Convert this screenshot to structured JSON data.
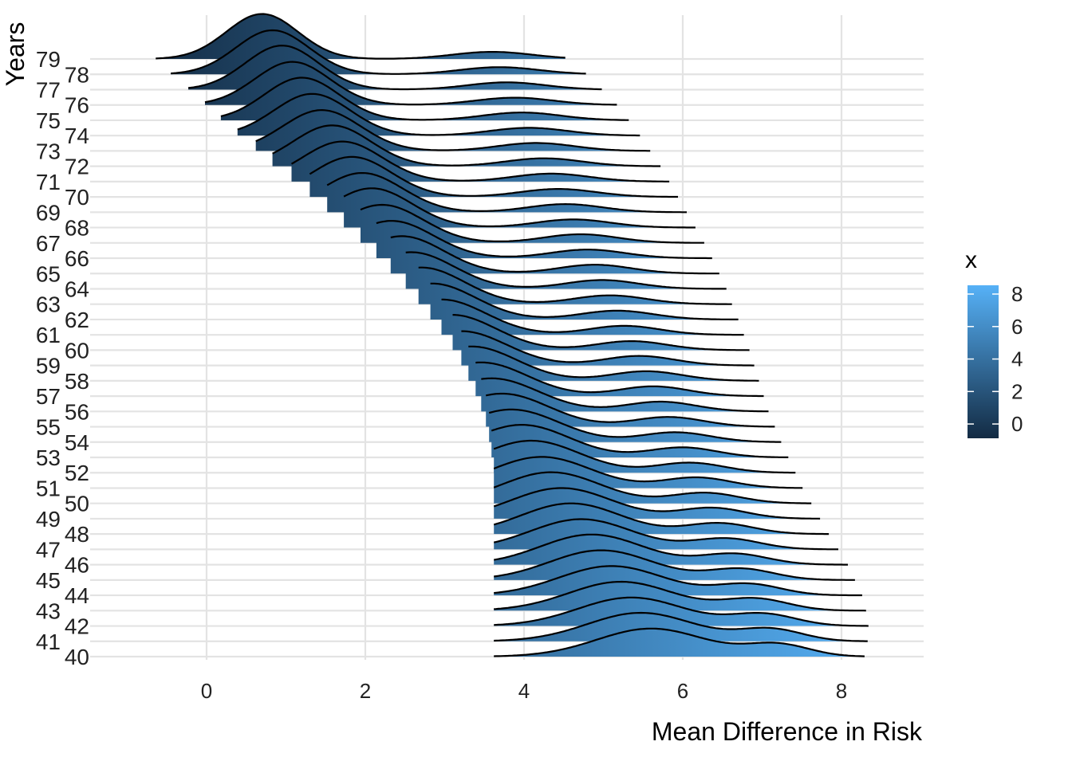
{
  "chart_data": {
    "type": "ridgeline",
    "xlabel": "Mean Difference in Risk",
    "ylabel": "Years",
    "xlim": [
      -1.4,
      9.0
    ],
    "x_ticks": [
      "0",
      "2",
      "4",
      "6",
      "8"
    ],
    "grid": true,
    "legend": {
      "title": "x",
      "placement": "right",
      "ticks": [
        "0",
        "2",
        "4",
        "6",
        "8"
      ],
      "range": [
        -0.88,
        8.54
      ],
      "low_color": "#132B43",
      "high_color": "#56B1F7"
    },
    "ridges": [
      {
        "year": "79",
        "min": -0.64,
        "max": 4.52,
        "modes": [
          [
            0.7,
            0.45,
            0.85
          ],
          [
            3.6,
            0.5,
            0.15
          ]
        ]
      },
      {
        "year": "78",
        "min": -0.45,
        "max": 4.78,
        "modes": [
          [
            0.83,
            0.46,
            0.85
          ],
          [
            3.69,
            0.5,
            0.15
          ]
        ]
      },
      {
        "year": "77",
        "min": -0.23,
        "max": 4.98,
        "modes": [
          [
            0.95,
            0.46,
            0.85
          ],
          [
            3.78,
            0.49,
            0.15
          ]
        ]
      },
      {
        "year": "76",
        "min": -0.02,
        "max": 5.17,
        "modes": [
          [
            1.08,
            0.47,
            0.85
          ],
          [
            3.88,
            0.49,
            0.15
          ]
        ]
      },
      {
        "year": "75",
        "min": 0.18,
        "max": 5.32,
        "modes": [
          [
            1.2,
            0.47,
            0.84
          ],
          [
            3.97,
            0.49,
            0.16
          ]
        ]
      },
      {
        "year": "74",
        "min": 0.39,
        "max": 5.46,
        "modes": [
          [
            1.33,
            0.48,
            0.84
          ],
          [
            4.06,
            0.49,
            0.16
          ]
        ]
      },
      {
        "year": "73",
        "min": 0.62,
        "max": 5.59,
        "modes": [
          [
            1.45,
            0.49,
            0.84
          ],
          [
            4.15,
            0.48,
            0.16
          ]
        ]
      },
      {
        "year": "72",
        "min": 0.83,
        "max": 5.72,
        "modes": [
          [
            1.58,
            0.49,
            0.84
          ],
          [
            4.25,
            0.48,
            0.16
          ]
        ]
      },
      {
        "year": "71",
        "min": 1.07,
        "max": 5.83,
        "modes": [
          [
            1.71,
            0.5,
            0.84
          ],
          [
            4.34,
            0.48,
            0.16
          ]
        ]
      },
      {
        "year": "70",
        "min": 1.3,
        "max": 5.94,
        "modes": [
          [
            1.83,
            0.5,
            0.84
          ],
          [
            4.43,
            0.48,
            0.16
          ]
        ]
      },
      {
        "year": "69",
        "min": 1.52,
        "max": 6.05,
        "modes": [
          [
            1.96,
            0.51,
            0.84
          ],
          [
            4.52,
            0.47,
            0.16
          ]
        ]
      },
      {
        "year": "68",
        "min": 1.73,
        "max": 6.16,
        "modes": [
          [
            2.08,
            0.51,
            0.84
          ],
          [
            4.62,
            0.47,
            0.16
          ]
        ]
      },
      {
        "year": "67",
        "min": 1.94,
        "max": 6.27,
        "modes": [
          [
            2.21,
            0.52,
            0.83
          ],
          [
            4.71,
            0.47,
            0.17
          ]
        ]
      },
      {
        "year": "66",
        "min": 2.14,
        "max": 6.37,
        "modes": [
          [
            2.33,
            0.53,
            0.83
          ],
          [
            4.8,
            0.47,
            0.17
          ]
        ]
      },
      {
        "year": "65",
        "min": 2.32,
        "max": 6.46,
        "modes": [
          [
            2.46,
            0.53,
            0.83
          ],
          [
            4.89,
            0.46,
            0.17
          ]
        ]
      },
      {
        "year": "64",
        "min": 2.51,
        "max": 6.55,
        "modes": [
          [
            2.58,
            0.54,
            0.83
          ],
          [
            4.98,
            0.46,
            0.17
          ]
        ]
      },
      {
        "year": "63",
        "min": 2.67,
        "max": 6.62,
        "modes": [
          [
            2.71,
            0.54,
            0.83
          ],
          [
            5.08,
            0.46,
            0.17
          ]
        ]
      },
      {
        "year": "62",
        "min": 2.82,
        "max": 6.7,
        "modes": [
          [
            2.84,
            0.55,
            0.83
          ],
          [
            5.17,
            0.46,
            0.17
          ]
        ]
      },
      {
        "year": "61",
        "min": 2.96,
        "max": 6.77,
        "modes": [
          [
            2.96,
            0.56,
            0.83
          ],
          [
            5.26,
            0.45,
            0.17
          ]
        ]
      },
      {
        "year": "60",
        "min": 3.1,
        "max": 6.84,
        "modes": [
          [
            3.09,
            0.56,
            0.83
          ],
          [
            5.35,
            0.45,
            0.17
          ]
        ]
      },
      {
        "year": "59",
        "min": 3.21,
        "max": 6.9,
        "modes": [
          [
            3.21,
            0.57,
            0.82
          ],
          [
            5.45,
            0.45,
            0.18
          ]
        ]
      },
      {
        "year": "58",
        "min": 3.3,
        "max": 6.96,
        "modes": [
          [
            3.34,
            0.57,
            0.82
          ],
          [
            5.54,
            0.45,
            0.18
          ]
        ]
      },
      {
        "year": "57",
        "min": 3.39,
        "max": 7.02,
        "modes": [
          [
            3.46,
            0.58,
            0.82
          ],
          [
            5.63,
            0.44,
            0.18
          ]
        ]
      },
      {
        "year": "56",
        "min": 3.46,
        "max": 7.08,
        "modes": [
          [
            3.59,
            0.59,
            0.82
          ],
          [
            5.72,
            0.44,
            0.18
          ]
        ]
      },
      {
        "year": "55",
        "min": 3.52,
        "max": 7.16,
        "modes": [
          [
            3.72,
            0.59,
            0.82
          ],
          [
            5.82,
            0.44,
            0.18
          ]
        ]
      },
      {
        "year": "54",
        "min": 3.56,
        "max": 7.24,
        "modes": [
          [
            3.84,
            0.6,
            0.82
          ],
          [
            5.91,
            0.44,
            0.18
          ]
        ]
      },
      {
        "year": "53",
        "min": 3.59,
        "max": 7.33,
        "modes": [
          [
            3.97,
            0.6,
            0.82
          ],
          [
            6.0,
            0.43,
            0.18
          ]
        ]
      },
      {
        "year": "52",
        "min": 3.62,
        "max": 7.42,
        "modes": [
          [
            4.09,
            0.61,
            0.82
          ],
          [
            6.09,
            0.43,
            0.18
          ]
        ]
      },
      {
        "year": "51",
        "min": 3.62,
        "max": 7.51,
        "modes": [
          [
            4.22,
            0.62,
            0.81
          ],
          [
            6.18,
            0.43,
            0.19
          ]
        ]
      },
      {
        "year": "50",
        "min": 3.62,
        "max": 7.62,
        "modes": [
          [
            4.34,
            0.62,
            0.81
          ],
          [
            6.28,
            0.43,
            0.19
          ]
        ]
      },
      {
        "year": "49",
        "min": 3.62,
        "max": 7.73,
        "modes": [
          [
            4.47,
            0.63,
            0.81
          ],
          [
            6.37,
            0.42,
            0.19
          ]
        ]
      },
      {
        "year": "48",
        "min": 3.62,
        "max": 7.84,
        "modes": [
          [
            4.59,
            0.63,
            0.81
          ],
          [
            6.46,
            0.42,
            0.19
          ]
        ]
      },
      {
        "year": "47",
        "min": 3.62,
        "max": 7.96,
        "modes": [
          [
            4.72,
            0.64,
            0.81
          ],
          [
            6.55,
            0.42,
            0.19
          ]
        ]
      },
      {
        "year": "46",
        "min": 3.62,
        "max": 8.08,
        "modes": [
          [
            4.85,
            0.64,
            0.81
          ],
          [
            6.65,
            0.42,
            0.19
          ]
        ]
      },
      {
        "year": "45",
        "min": 3.62,
        "max": 8.17,
        "modes": [
          [
            4.97,
            0.65,
            0.81
          ],
          [
            6.74,
            0.41,
            0.19
          ]
        ]
      },
      {
        "year": "44",
        "min": 3.62,
        "max": 8.26,
        "modes": [
          [
            5.1,
            0.66,
            0.81
          ],
          [
            6.83,
            0.41,
            0.19
          ]
        ]
      },
      {
        "year": "43",
        "min": 3.62,
        "max": 8.31,
        "modes": [
          [
            5.22,
            0.66,
            0.8
          ],
          [
            6.92,
            0.41,
            0.2
          ]
        ]
      },
      {
        "year": "42",
        "min": 3.62,
        "max": 8.34,
        "modes": [
          [
            5.35,
            0.67,
            0.8
          ],
          [
            7.02,
            0.41,
            0.2
          ]
        ]
      },
      {
        "year": "41",
        "min": 3.62,
        "max": 8.33,
        "modes": [
          [
            5.47,
            0.67,
            0.8
          ],
          [
            7.11,
            0.4,
            0.2
          ]
        ]
      },
      {
        "year": "40",
        "min": 3.62,
        "max": 8.29,
        "modes": [
          [
            5.6,
            0.68,
            0.8
          ],
          [
            7.2,
            0.4,
            0.2
          ]
        ]
      }
    ]
  }
}
